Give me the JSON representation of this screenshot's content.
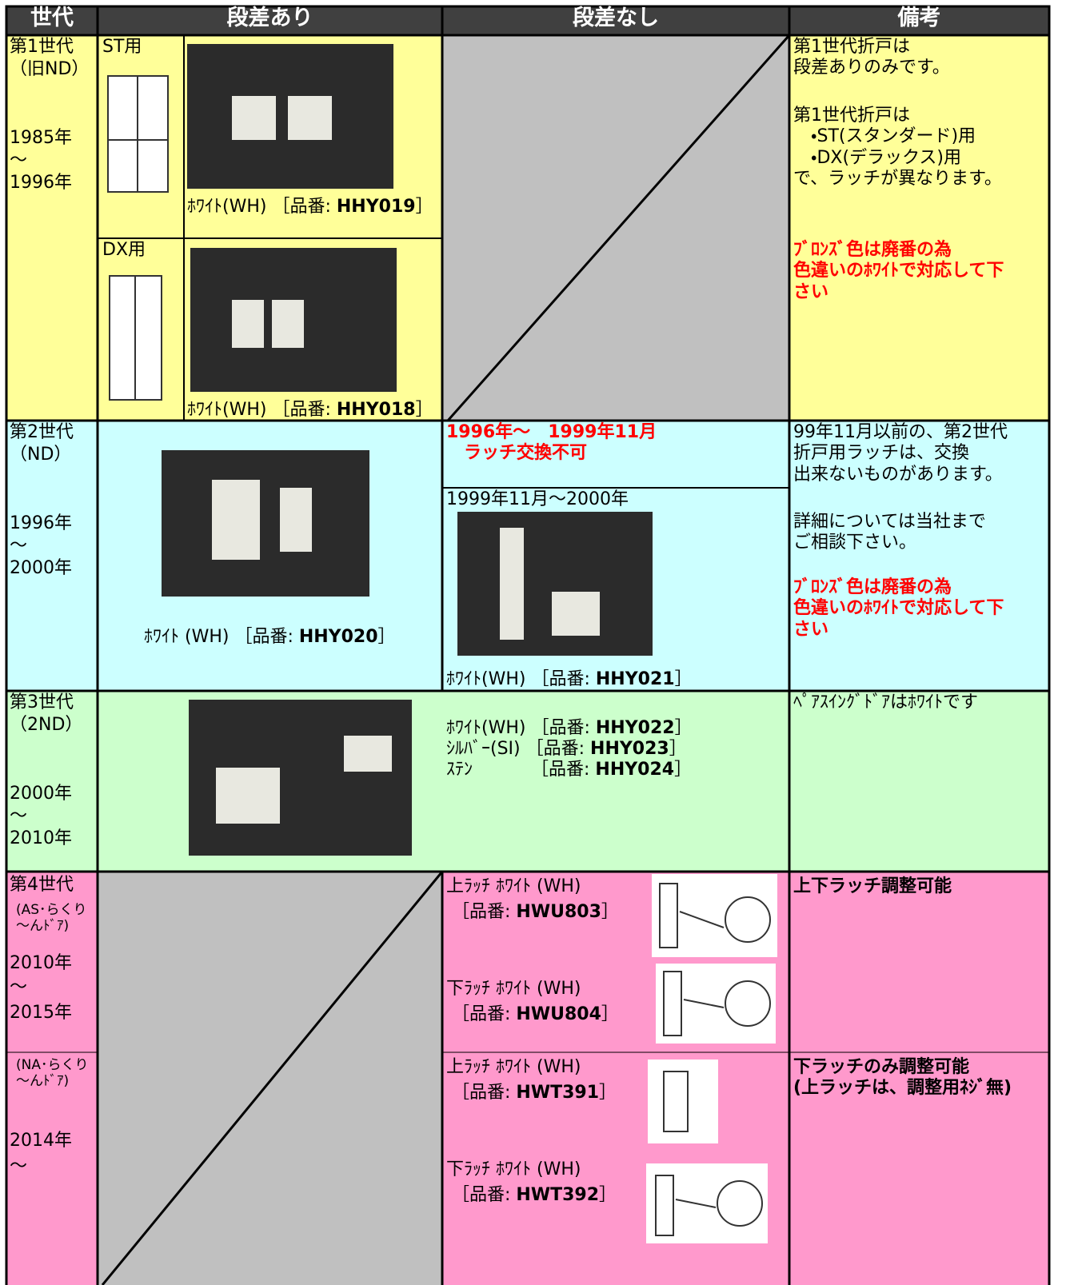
{
  "header": {
    "generation": "世代",
    "step": "段差あり",
    "no_step": "段差なし",
    "notes": "備考"
  },
  "gen1": {
    "generation": {
      "name": "第1世代",
      "model": "（旧ND）",
      "from": "1985年",
      "tilde": "～",
      "to": "1996年"
    },
    "st": {
      "label": "ST用",
      "part": {
        "prefix": "ﾎﾜｲﾄ(WH) ［品番: ",
        "code": "HHY019",
        "suffix": "］"
      }
    },
    "dx": {
      "label": "DX用",
      "part": {
        "prefix": "ﾎﾜｲﾄ(WH) ［品番: ",
        "code": "HHY018",
        "suffix": "］"
      }
    },
    "notes": [
      "第1世代折戸は\n段差ありのみです。",
      "第1世代折戸は\n　・ST(スタンダード)用\n　・DX(デラックス)用\nで、ラッチが異なります。"
    ],
    "notes_red": "ﾌﾞﾛﾝｽﾞ色は廃番の為\n色違いのﾎﾜｲﾄで対応して下\nさい"
  },
  "gen2": {
    "generation": {
      "name": "第2世代",
      "model": "（ND）",
      "from": "1996年",
      "tilde": "～",
      "to": "2000年"
    },
    "step_part": {
      "prefix": "ﾎﾜｲﾄ (WH) ［品番: ",
      "code": "HHY020",
      "suffix": "］"
    },
    "unavailable": "1996年～　1999年11月\n　ラッチ交換不可",
    "period": "1999年11月～2000年",
    "no_step_part": {
      "prefix": "ﾎﾜｲﾄ(WH) ［品番: ",
      "code": "HHY021",
      "suffix": "］"
    },
    "notes": [
      "99年11月以前の、第2世代\n折戸用ラッチは、交換\n出来ないものがあります。",
      "詳細については当社まで\nご相談下さい。"
    ],
    "notes_red": "ﾌﾞﾛﾝｽﾞ色は廃番の為\n色違いのﾎﾜｲﾄで対応して下\nさい"
  },
  "gen3": {
    "generation": {
      "name": "第3世代",
      "model": "（2ND）",
      "from": "2000年",
      "tilde": "～",
      "to": "2010年"
    },
    "parts": [
      {
        "prefix": "ﾎﾜｲﾄ(WH) ［品番: ",
        "code": "HHY022",
        "suffix": "］"
      },
      {
        "prefix": "ｼﾙﾊﾞｰ(SI) ［品番: ",
        "code": "HHY023",
        "suffix": "］"
      },
      {
        "prefix": "ｽﾃﾝ　　　 ［品番: ",
        "code": "HHY024",
        "suffix": "］"
      }
    ],
    "notes": "ﾍﾟｱｽｲﾝｸﾞﾄﾞｱはﾎﾜｲﾄです"
  },
  "gen4": {
    "generation": {
      "name": "第4世代",
      "model": "(AS･らくり\n～んﾄﾞｱ)",
      "from": "2010年",
      "tilde": "～",
      "to": "2015年"
    },
    "upper": {
      "name": "上ﾗｯﾁ ﾎﾜｲﾄ (WH)",
      "part": {
        "prefix": "［品番: ",
        "code": "HWU803",
        "suffix": "］"
      }
    },
    "lower": {
      "name": "下ﾗｯﾁ ﾎﾜｲﾄ (WH)",
      "part": {
        "prefix": "［品番: ",
        "code": "HWU804",
        "suffix": "］"
      }
    },
    "notes": "上下ラッチ調整可能"
  },
  "gen5": {
    "generation": {
      "model": "(NA･らくり\n～んﾄﾞｱ)",
      "from": "2014年",
      "tilde": "～"
    },
    "upper": {
      "name": "上ﾗｯﾁ ﾎﾜｲﾄ (WH)",
      "part": {
        "prefix": "［品番: ",
        "code": "HWT391",
        "suffix": "］"
      }
    },
    "lower": {
      "name": "下ﾗｯﾁ ﾎﾜｲﾄ (WH)",
      "part": {
        "prefix": "［品番: ",
        "code": "HWT392",
        "suffix": "］"
      }
    },
    "notes": "下ラッチのみ調整可能\n(上ラッチは、調整用ﾈｼﾞ無)"
  }
}
